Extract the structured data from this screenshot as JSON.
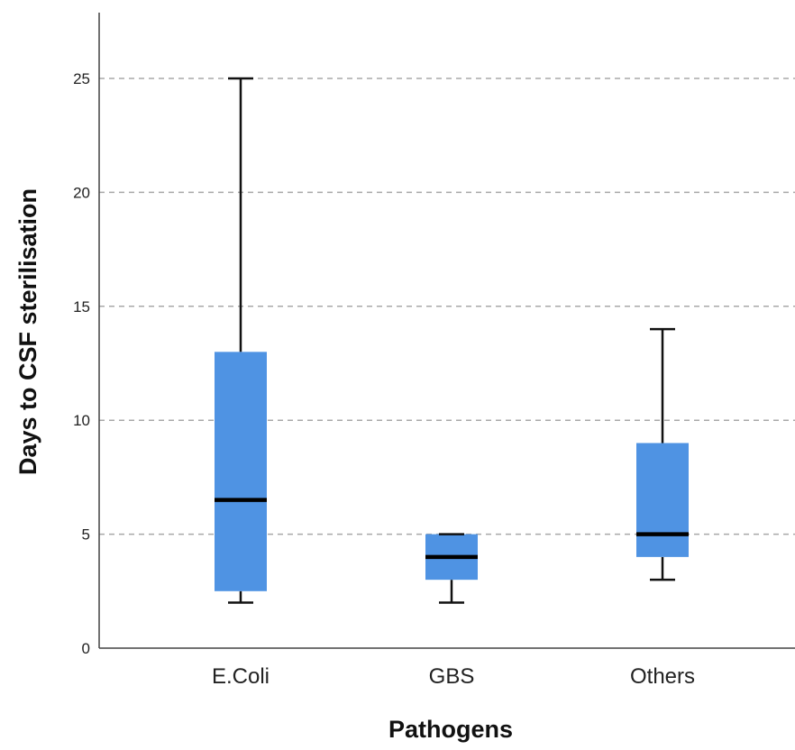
{
  "chart_data": {
    "type": "boxplot",
    "title": "",
    "xlabel": "Pathogens",
    "ylabel": "Days to CSF sterilisation",
    "ylim": [
      0,
      28
    ],
    "yticks": [
      0,
      5,
      10,
      15,
      20,
      25
    ],
    "grid": "horizontal dashed",
    "box_color": "#4f93e3",
    "categories": [
      "E.Coli",
      "GBS",
      "Others"
    ],
    "boxes": [
      {
        "category": "E.Coli",
        "min": 2,
        "q1": 2.5,
        "median": 6.5,
        "q3": 13,
        "max": 25
      },
      {
        "category": "GBS",
        "min": 2,
        "q1": 3,
        "median": 4,
        "q3": 5,
        "max": 5
      },
      {
        "category": "Others",
        "min": 3,
        "q1": 4,
        "median": 5,
        "q3": 9,
        "max": 14
      }
    ]
  }
}
